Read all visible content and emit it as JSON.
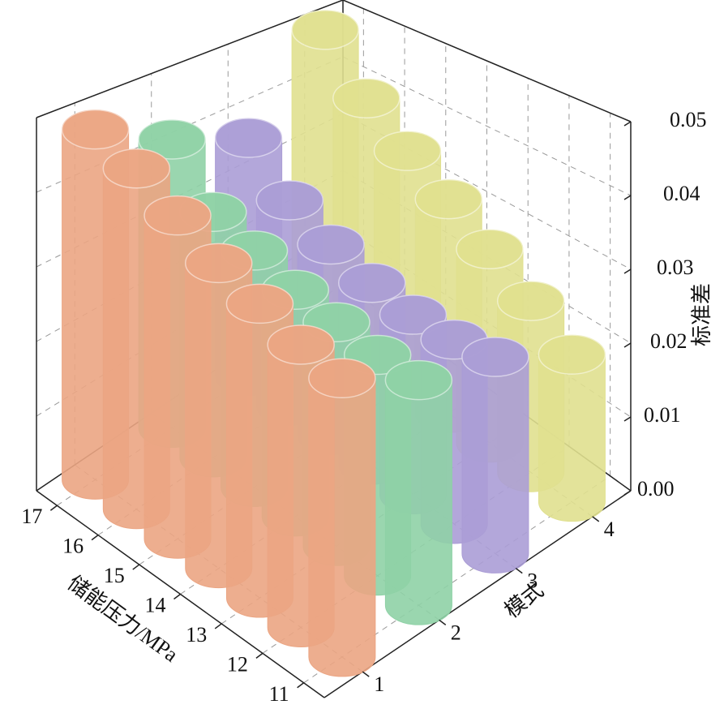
{
  "chart_data": {
    "type": "bar3d",
    "x_label": "储能压力/MPa",
    "y_label": "模式",
    "z_label": "标准差",
    "categories": [
      "11",
      "12",
      "13",
      "14",
      "15",
      "16",
      "17"
    ],
    "series": [
      {
        "name": "1",
        "color": "#eba583",
        "values": [
          0.035,
          0.036,
          0.038,
          0.04,
          0.043,
          0.046,
          0.048
        ]
      },
      {
        "name": "2",
        "color": "#8fd1a6",
        "values": [
          0.029,
          0.029,
          0.03,
          0.031,
          0.033,
          0.035,
          0.042
        ]
      },
      {
        "name": "3",
        "color": "#ab9dd6",
        "values": [
          0.026,
          0.025,
          0.025,
          0.026,
          0.028,
          0.031,
          0.037
        ]
      },
      {
        "name": "4",
        "color": "#e0e08f",
        "values": [
          0.02,
          0.024,
          0.028,
          0.032,
          0.036,
          0.041,
          0.049
        ]
      }
    ],
    "zlim": [
      0,
      0.05
    ],
    "zticks": [
      {
        "value": 0,
        "label": "0.00"
      },
      {
        "value": 0.01,
        "label": "0.01"
      },
      {
        "value": 0.02,
        "label": "0.02"
      },
      {
        "value": 0.03,
        "label": "0.03"
      },
      {
        "value": 0.04,
        "label": "0.04"
      },
      {
        "value": 0.05,
        "label": "0.05"
      }
    ],
    "grid": true
  }
}
